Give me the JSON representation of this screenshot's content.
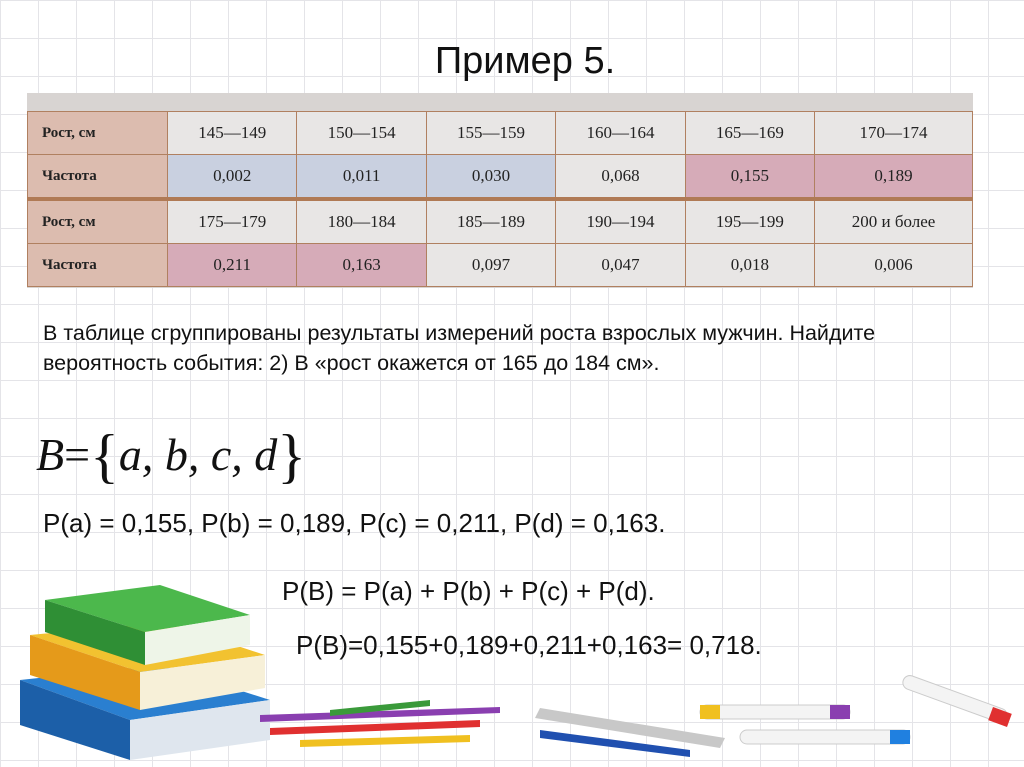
{
  "title": "Пример 5.",
  "table": {
    "rows": [
      {
        "header": "Рост, см",
        "cells": [
          "145—149",
          "150—154",
          "155—159",
          "160—164",
          "165—169",
          "170—174"
        ]
      },
      {
        "header": "Частота",
        "cells": [
          "0,002",
          "0,011",
          "0,030",
          "0,068",
          "0,155",
          "0,189"
        ]
      },
      {
        "header": "Рост, см",
        "cells": [
          "175—179",
          "180—184",
          "185—189",
          "190—194",
          "195—199",
          "200 и более"
        ]
      },
      {
        "header": "Частота",
        "cells": [
          "0,211",
          "0,163",
          "0,097",
          "0,047",
          "0,018",
          "0,006"
        ]
      }
    ]
  },
  "problem": "В таблице сгруппированы результаты измерений роста взрослых мужчин. Найдите вероятность события: 2) В «рост окажется от 165 до 184 см».",
  "formula_set": {
    "lhs": "B",
    "eq": "=",
    "open": "{",
    "items": "a, b, c, d",
    "close": "}"
  },
  "line1": "P(a) = 0,155, P(b) = 0,189, P(c) = 0,211, P(d) = 0,163.",
  "line2": "P(B) = P(a) + P(b) + P(c) + P(d).",
  "line3": "P(B)=0,155+0,189+0,211+0,163= 0,718."
}
